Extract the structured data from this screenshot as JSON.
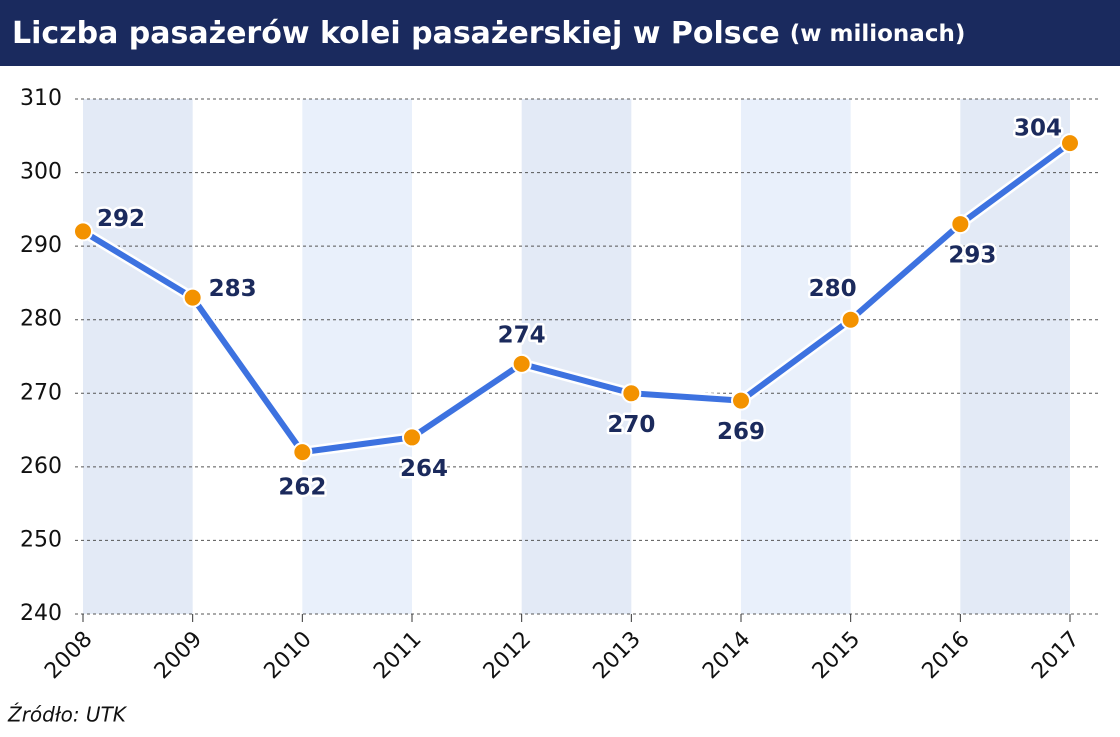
{
  "chart_data": {
    "type": "line",
    "title": "Liczba pasażerów kolei pasażerskiej w Polsce",
    "subtitle": "(w milionach)",
    "source": "Źródło: UTK",
    "x": [
      2008,
      2009,
      2010,
      2011,
      2012,
      2013,
      2014,
      2015,
      2016,
      2017
    ],
    "xlim": [
      2008,
      2017
    ],
    "xticks": [
      2008,
      2009,
      2010,
      2011,
      2012,
      2013,
      2014,
      2015,
      2016,
      2017
    ],
    "values": [
      292,
      283,
      262,
      264,
      274,
      270,
      269,
      280,
      293,
      304
    ],
    "color": "#3d72e0",
    "marker_color": "#f39200",
    "ylim": [
      240,
      310
    ],
    "yticks": [
      240,
      250,
      260,
      270,
      280,
      290,
      300,
      310
    ],
    "grid": true
  }
}
